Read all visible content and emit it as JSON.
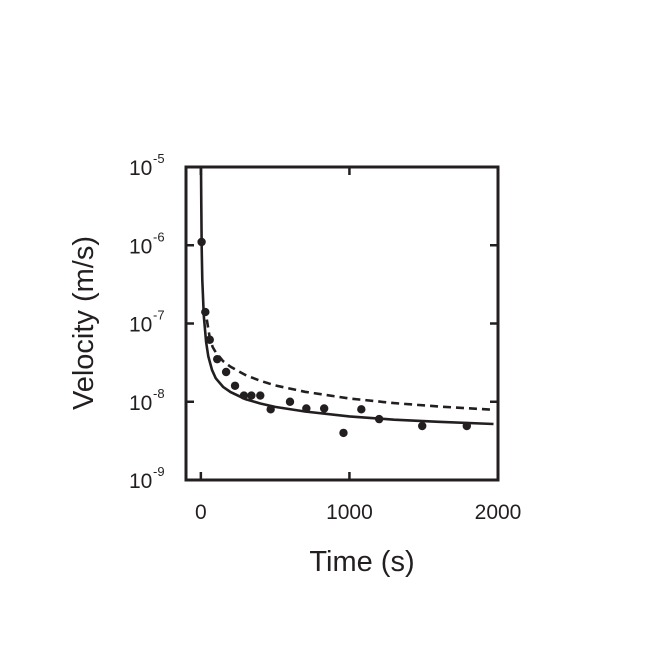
{
  "chart_data": {
    "type": "scatter",
    "xlabel": "Time (s)",
    "ylabel": "Velocity (m/s)",
    "xlim": [
      -100,
      2000
    ],
    "ylim": [
      1e-09,
      1e-05
    ],
    "y_scale": "log",
    "grid": false,
    "x_ticks": [
      {
        "value": 0,
        "label": "0"
      },
      {
        "value": 1000,
        "label": "1000"
      },
      {
        "value": 2000,
        "label": "2000"
      }
    ],
    "y_ticks": [
      {
        "value": 1e-05,
        "base": "10",
        "exp": "-5"
      },
      {
        "value": 1e-06,
        "base": "10",
        "exp": "-6"
      },
      {
        "value": 1e-07,
        "base": "10",
        "exp": "-7"
      },
      {
        "value": 1e-08,
        "base": "10",
        "exp": "-8"
      },
      {
        "value": 1e-09,
        "base": "10",
        "exp": "-9"
      }
    ],
    "series": [
      {
        "style": "points",
        "color": "#231f20",
        "x": [
          5,
          30,
          60,
          110,
          170,
          230,
          290,
          340,
          400,
          470,
          600,
          710,
          830,
          960,
          1080,
          1200,
          1490,
          1790
        ],
        "y": [
          1.1e-06,
          1.4e-07,
          6.2e-08,
          3.5e-08,
          2.4e-08,
          1.6e-08,
          1.2e-08,
          1.2e-08,
          1.2e-08,
          8e-09,
          1e-08,
          8.2e-09,
          8.2e-09,
          4e-09,
          8e-09,
          6e-09,
          4.9e-09,
          4.9e-09
        ]
      },
      {
        "style": "solid-line",
        "color": "#231f20",
        "x": [
          1,
          3,
          6,
          10,
          20,
          35,
          50,
          75,
          100,
          150,
          200,
          300,
          400,
          500,
          700,
          1000,
          1300,
          1600,
          1970
        ],
        "y": [
          1e-05,
          3.2e-06,
          9e-07,
          3.6e-07,
          1.25e-07,
          5.8e-08,
          3.8e-08,
          2.55e-08,
          2e-08,
          1.55e-08,
          1.33e-08,
          1.08e-08,
          9.5e-09,
          8.6e-09,
          7.5e-09,
          6.5e-09,
          5.9e-09,
          5.55e-09,
          5.2e-09
        ]
      },
      {
        "style": "dashed-line",
        "color": "#231f20",
        "x": [
          40,
          60,
          80,
          100,
          150,
          200,
          300,
          400,
          500,
          700,
          1000,
          1300,
          1600,
          1970
        ],
        "y": [
          1.12e-07,
          6.5e-08,
          5e-08,
          4.3e-08,
          3.3e-08,
          2.8e-08,
          2.2e-08,
          1.85e-08,
          1.62e-08,
          1.34e-08,
          1.1e-08,
          9.6e-09,
          8.7e-09,
          7.9e-09
        ]
      }
    ]
  }
}
